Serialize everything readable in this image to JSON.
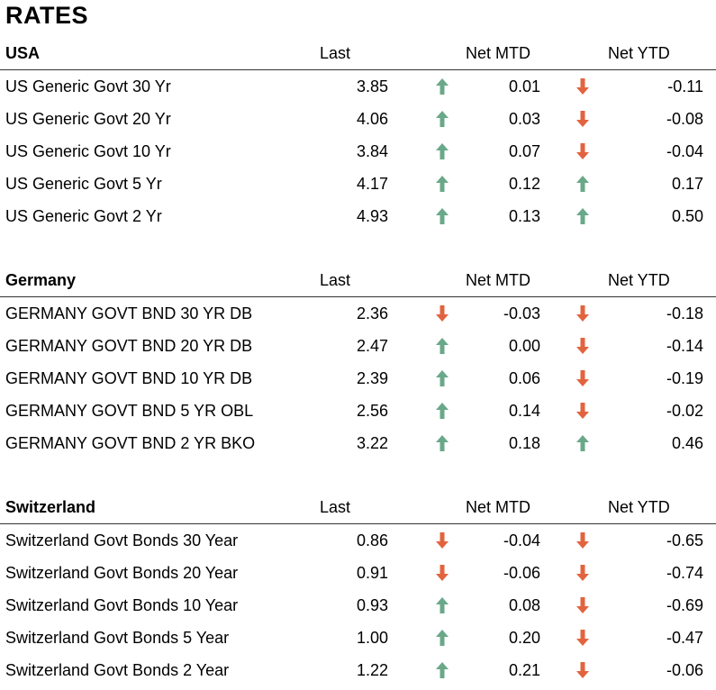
{
  "title": "RATES",
  "colors": {
    "up": "#6aa88a",
    "down": "#e2643f"
  },
  "sections": [
    {
      "name": "USA",
      "col_last": "Last",
      "col_mtd": "Net MTD",
      "col_ytd": "Net YTD",
      "rows": [
        {
          "name": "US Generic Govt 30 Yr",
          "last": "3.85",
          "mtd_dir": "up",
          "mtd": "0.01",
          "ytd_dir": "down",
          "ytd": "-0.11"
        },
        {
          "name": "US Generic Govt 20 Yr",
          "last": "4.06",
          "mtd_dir": "up",
          "mtd": "0.03",
          "ytd_dir": "down",
          "ytd": "-0.08"
        },
        {
          "name": "US Generic Govt 10 Yr",
          "last": "3.84",
          "mtd_dir": "up",
          "mtd": "0.07",
          "ytd_dir": "down",
          "ytd": "-0.04"
        },
        {
          "name": "US Generic Govt 5 Yr",
          "last": "4.17",
          "mtd_dir": "up",
          "mtd": "0.12",
          "ytd_dir": "up",
          "ytd": "0.17"
        },
        {
          "name": "US Generic Govt 2 Yr",
          "last": "4.93",
          "mtd_dir": "up",
          "mtd": "0.13",
          "ytd_dir": "up",
          "ytd": "0.50"
        }
      ]
    },
    {
      "name": "Germany",
      "col_last": "Last",
      "col_mtd": "Net MTD",
      "col_ytd": "Net YTD",
      "rows": [
        {
          "name": "GERMANY GOVT BND 30 YR DB",
          "last": "2.36",
          "mtd_dir": "down",
          "mtd": "-0.03",
          "ytd_dir": "down",
          "ytd": "-0.18"
        },
        {
          "name": "GERMANY GOVT BND 20 YR DB",
          "last": "2.47",
          "mtd_dir": "up",
          "mtd": "0.00",
          "ytd_dir": "down",
          "ytd": "-0.14"
        },
        {
          "name": "GERMANY GOVT BND 10 YR DB",
          "last": "2.39",
          "mtd_dir": "up",
          "mtd": "0.06",
          "ytd_dir": "down",
          "ytd": "-0.19"
        },
        {
          "name": "GERMANY GOVT BND 5 YR OBL",
          "last": "2.56",
          "mtd_dir": "up",
          "mtd": "0.14",
          "ytd_dir": "down",
          "ytd": "-0.02"
        },
        {
          "name": "GERMANY GOVT BND 2 YR BKO",
          "last": "3.22",
          "mtd_dir": "up",
          "mtd": "0.18",
          "ytd_dir": "up",
          "ytd": "0.46"
        }
      ]
    },
    {
      "name": "Switzerland",
      "col_last": "Last",
      "col_mtd": "Net MTD",
      "col_ytd": "Net YTD",
      "rows": [
        {
          "name": "Switzerland Govt Bonds 30 Year",
          "last": "0.86",
          "mtd_dir": "down",
          "mtd": "-0.04",
          "ytd_dir": "down",
          "ytd": "-0.65"
        },
        {
          "name": "Switzerland Govt Bonds 20 Year",
          "last": "0.91",
          "mtd_dir": "down",
          "mtd": "-0.06",
          "ytd_dir": "down",
          "ytd": "-0.74"
        },
        {
          "name": "Switzerland Govt Bonds 10 Year",
          "last": "0.93",
          "mtd_dir": "up",
          "mtd": "0.08",
          "ytd_dir": "down",
          "ytd": "-0.69"
        },
        {
          "name": "Switzerland Govt Bonds 5 Year",
          "last": "1.00",
          "mtd_dir": "up",
          "mtd": "0.20",
          "ytd_dir": "down",
          "ytd": "-0.47"
        },
        {
          "name": "Switzerland Govt Bonds 2 Year",
          "last": "1.22",
          "mtd_dir": "up",
          "mtd": "0.21",
          "ytd_dir": "down",
          "ytd": "-0.06"
        }
      ]
    }
  ]
}
